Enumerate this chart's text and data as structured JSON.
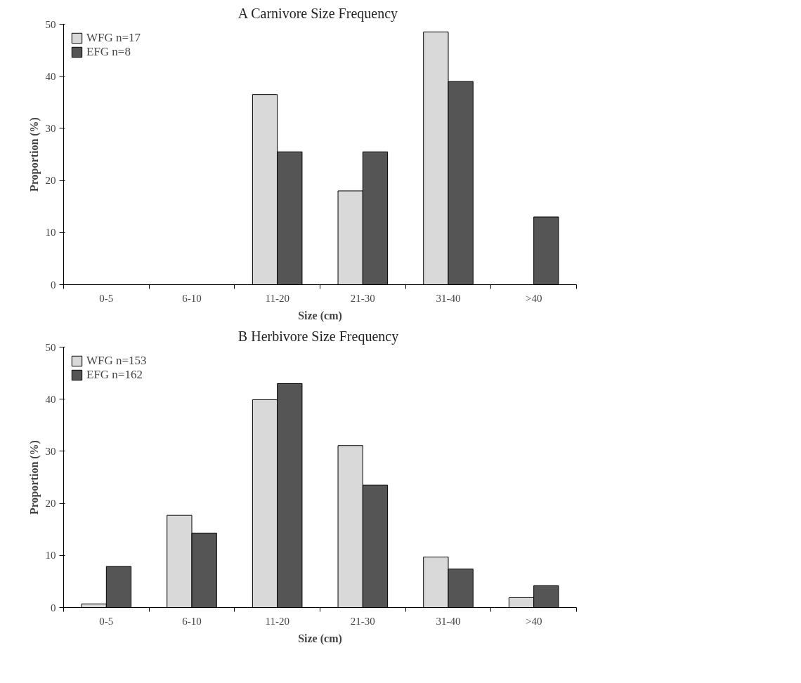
{
  "chart_data": [
    {
      "type": "bar",
      "title": "A  Carnivore Size Frequency",
      "xlabel": "Size (cm)",
      "ylabel": "Proportion (%)",
      "categories": [
        "0-5",
        "6-10",
        "11-20",
        "21-30",
        "31-40",
        ">40"
      ],
      "series": [
        {
          "name": "WFG n=17",
          "color": "#d9d9d9",
          "values": [
            null,
            null,
            36.5,
            18,
            48.5,
            null
          ]
        },
        {
          "name": "EFG n=8",
          "color": "#555555",
          "values": [
            null,
            null,
            25.5,
            25.5,
            39,
            13
          ]
        }
      ],
      "ylim": [
        0,
        50
      ],
      "yticks": [
        0,
        10,
        20,
        30,
        40,
        50
      ],
      "grid": false,
      "legend": "top left"
    },
    {
      "type": "bar",
      "title": "B  Herbivore Size Frequency",
      "xlabel": "Size (cm)",
      "ylabel": "Proportion (%)",
      "categories": [
        "0-5",
        "6-10",
        "11-20",
        "21-30",
        "31-40",
        ">40"
      ],
      "series": [
        {
          "name": "WFG n=153",
          "color": "#d9d9d9",
          "values": [
            0.7,
            17.7,
            39.9,
            31.1,
            9.7,
            1.9
          ]
        },
        {
          "name": "EFG n=162",
          "color": "#555555",
          "values": [
            7.9,
            14.3,
            43,
            23.5,
            7.4,
            4.2
          ]
        }
      ],
      "ylim": [
        0,
        50
      ],
      "yticks": [
        0,
        10,
        20,
        30,
        40,
        50
      ],
      "grid": false,
      "legend": "top left"
    }
  ]
}
